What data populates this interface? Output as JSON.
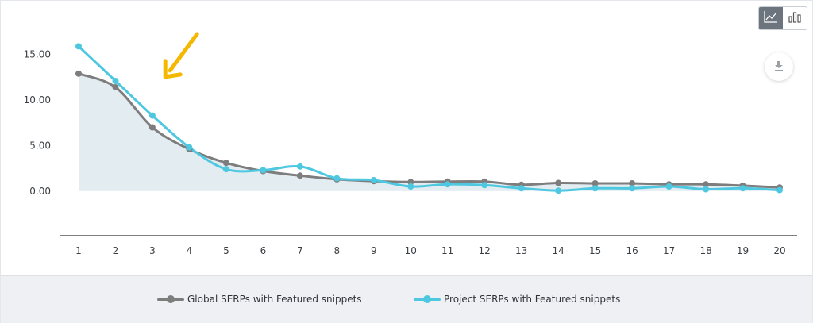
{
  "toolbar": {
    "line_view_icon": "line-chart-icon",
    "bar_view_icon": "bar-chart-icon",
    "download_icon": "download-icon"
  },
  "chart_data": {
    "type": "line",
    "x": [
      1,
      2,
      3,
      4,
      5,
      6,
      7,
      8,
      9,
      10,
      11,
      12,
      13,
      14,
      15,
      16,
      17,
      18,
      19,
      20
    ],
    "xticks": [
      "1",
      "2",
      "3",
      "4",
      "5",
      "6",
      "7",
      "8",
      "9",
      "10",
      "11",
      "12",
      "13",
      "14",
      "15",
      "16",
      "17",
      "18",
      "19",
      "20"
    ],
    "yticks": [
      "0.00",
      "5.00",
      "10.00",
      "15.00"
    ],
    "ylim": [
      -4.9,
      17.5
    ],
    "grid": false,
    "legend_position": "bottom",
    "series": [
      {
        "name": "Global SERPs with Featured snippets",
        "color": "#7d7d7d",
        "fill": "#dde9ee",
        "values": [
          12.9,
          11.4,
          7.0,
          4.6,
          3.1,
          2.2,
          1.7,
          1.3,
          1.1,
          1.0,
          1.05,
          1.05,
          0.7,
          0.9,
          0.85,
          0.85,
          0.75,
          0.75,
          0.6,
          0.4
        ]
      },
      {
        "name": "Project SERPs with Featured snippets",
        "color": "#4ec8e0",
        "values": [
          15.9,
          12.1,
          8.3,
          4.8,
          2.4,
          2.3,
          2.7,
          1.4,
          1.2,
          0.5,
          0.75,
          0.65,
          0.3,
          0.05,
          0.3,
          0.3,
          0.5,
          0.2,
          0.3,
          0.1
        ]
      }
    ],
    "annotation": {
      "type": "arrow",
      "color": "#f5b800",
      "points_to_x": 3.5,
      "points_to_y": 12.8
    }
  }
}
